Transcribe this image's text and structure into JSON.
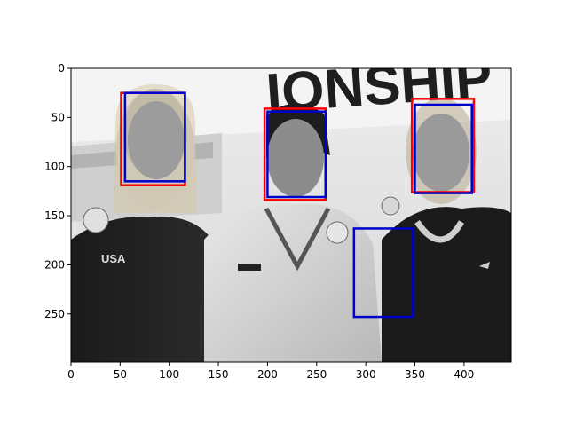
{
  "image": {
    "description_tag": "grayscale photo of three athletes holding medals",
    "background_banner_text": "IONSHIP",
    "medal_logo_text": "USA",
    "colormap": "gray"
  },
  "axes": {
    "xlim": [
      0,
      448
    ],
    "ylim": [
      299,
      0
    ],
    "x_ticks": [
      0,
      50,
      100,
      150,
      200,
      250,
      300,
      350,
      400
    ],
    "y_ticks": [
      0,
      50,
      100,
      150,
      200,
      250
    ],
    "grid": false
  },
  "boxes": {
    "red": [
      {
        "x0": 51,
        "y0": 25,
        "x1": 116,
        "y1": 119
      },
      {
        "x0": 197,
        "y0": 41,
        "x1": 259,
        "y1": 134
      },
      {
        "x0": 347,
        "y0": 31,
        "x1": 410,
        "y1": 126
      }
    ],
    "blue": [
      {
        "x0": 55,
        "y0": 25,
        "x1": 116,
        "y1": 115
      },
      {
        "x0": 200,
        "y0": 44,
        "x1": 259,
        "y1": 131
      },
      {
        "x0": 350,
        "y0": 37,
        "x1": 408,
        "y1": 127
      },
      {
        "x0": 288,
        "y0": 163,
        "x1": 348,
        "y1": 253
      }
    ]
  },
  "colors": {
    "red_box": "#ff0000",
    "blue_box": "#0000cc"
  }
}
